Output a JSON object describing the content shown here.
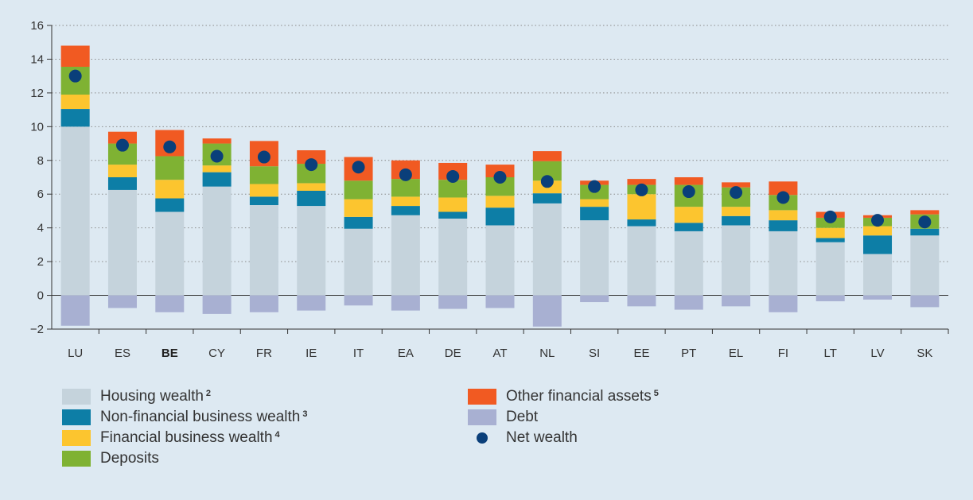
{
  "chart_data": {
    "type": "bar",
    "stacked": true,
    "categories": [
      "LU",
      "ES",
      "BE",
      "CY",
      "FR",
      "IE",
      "IT",
      "EA",
      "DE",
      "AT",
      "NL",
      "SI",
      "EE",
      "PT",
      "EL",
      "FI",
      "LT",
      "LV",
      "SK"
    ],
    "bold_categories": [
      "BE"
    ],
    "ylim": [
      -2,
      16
    ],
    "yticks": [
      -2,
      0,
      2,
      4,
      6,
      8,
      10,
      12,
      14,
      16
    ],
    "ytick_labels": [
      "−2",
      "0",
      "2",
      "4",
      "6",
      "8",
      "10",
      "12",
      "14",
      "16"
    ],
    "grid": "horizontal-dotted",
    "series": [
      {
        "name": "Housing wealth",
        "note": "2",
        "color": "#c5d3dc",
        "values": [
          10.0,
          6.25,
          4.95,
          6.45,
          5.35,
          5.3,
          3.95,
          4.75,
          4.55,
          4.15,
          5.45,
          4.45,
          4.1,
          3.8,
          4.15,
          3.8,
          3.15,
          2.45,
          3.55
        ]
      },
      {
        "name": "Non-financial business wealth",
        "note": "3",
        "color": "#0d7ea6",
        "values": [
          1.05,
          0.75,
          0.8,
          0.85,
          0.5,
          0.9,
          0.7,
          0.55,
          0.4,
          1.05,
          0.6,
          0.8,
          0.4,
          0.5,
          0.55,
          0.65,
          0.25,
          1.1,
          0.4
        ]
      },
      {
        "name": "Financial business wealth",
        "note": "4",
        "color": "#fcc52f",
        "values": [
          0.85,
          0.75,
          1.1,
          0.4,
          0.75,
          0.45,
          1.05,
          0.55,
          0.85,
          0.7,
          0.75,
          0.45,
          1.5,
          0.95,
          0.55,
          0.6,
          0.6,
          0.55,
          0.0
        ]
      },
      {
        "name": "Deposits",
        "note": "",
        "color": "#7fb233",
        "values": [
          1.65,
          1.25,
          1.4,
          1.3,
          1.05,
          1.15,
          1.1,
          1.05,
          1.05,
          1.1,
          1.15,
          0.85,
          0.55,
          1.3,
          1.15,
          0.9,
          0.6,
          0.5,
          0.85
        ]
      },
      {
        "name": "Other financial assets",
        "note": "5",
        "color": "#f15a22",
        "values": [
          1.25,
          0.7,
          1.55,
          0.3,
          1.5,
          0.8,
          1.4,
          1.1,
          1.0,
          0.75,
          0.6,
          0.25,
          0.35,
          0.45,
          0.3,
          0.8,
          0.35,
          0.15,
          0.25
        ]
      },
      {
        "name": "Debt",
        "note": "",
        "color": "#a8b0d2",
        "values": [
          -1.8,
          -0.75,
          -1.0,
          -1.1,
          -1.0,
          -0.9,
          -0.6,
          -0.9,
          -0.8,
          -0.75,
          -1.85,
          -0.4,
          -0.65,
          -0.85,
          -0.65,
          -1.0,
          -0.35,
          -0.25,
          -0.7
        ]
      }
    ],
    "net_wealth": {
      "name": "Net wealth",
      "note": "",
      "color": "#0a3f7a",
      "values": [
        13.0,
        8.9,
        8.8,
        8.25,
        8.2,
        7.75,
        7.6,
        7.15,
        7.05,
        7.0,
        6.75,
        6.45,
        6.25,
        6.15,
        6.1,
        5.8,
        4.65,
        4.45,
        4.35
      ]
    },
    "legend": {
      "placement": "bottom",
      "left": [
        {
          "name": "Housing wealth",
          "note": "2",
          "color": "#c5d3dc",
          "kind": "swatch"
        },
        {
          "name": "Non-financial business wealth",
          "note": "3",
          "color": "#0d7ea6",
          "kind": "swatch"
        },
        {
          "name": "Financial business wealth",
          "note": "4",
          "color": "#fcc52f",
          "kind": "swatch"
        },
        {
          "name": "Deposits",
          "note": "",
          "color": "#7fb233",
          "kind": "swatch"
        }
      ],
      "right": [
        {
          "name": "Other financial assets",
          "note": "5",
          "color": "#f15a22",
          "kind": "swatch"
        },
        {
          "name": "Debt",
          "note": "",
          "color": "#a8b0d2",
          "kind": "swatch"
        },
        {
          "name": "Net wealth",
          "note": "",
          "color": "#0a3f7a",
          "kind": "dot"
        }
      ]
    }
  }
}
